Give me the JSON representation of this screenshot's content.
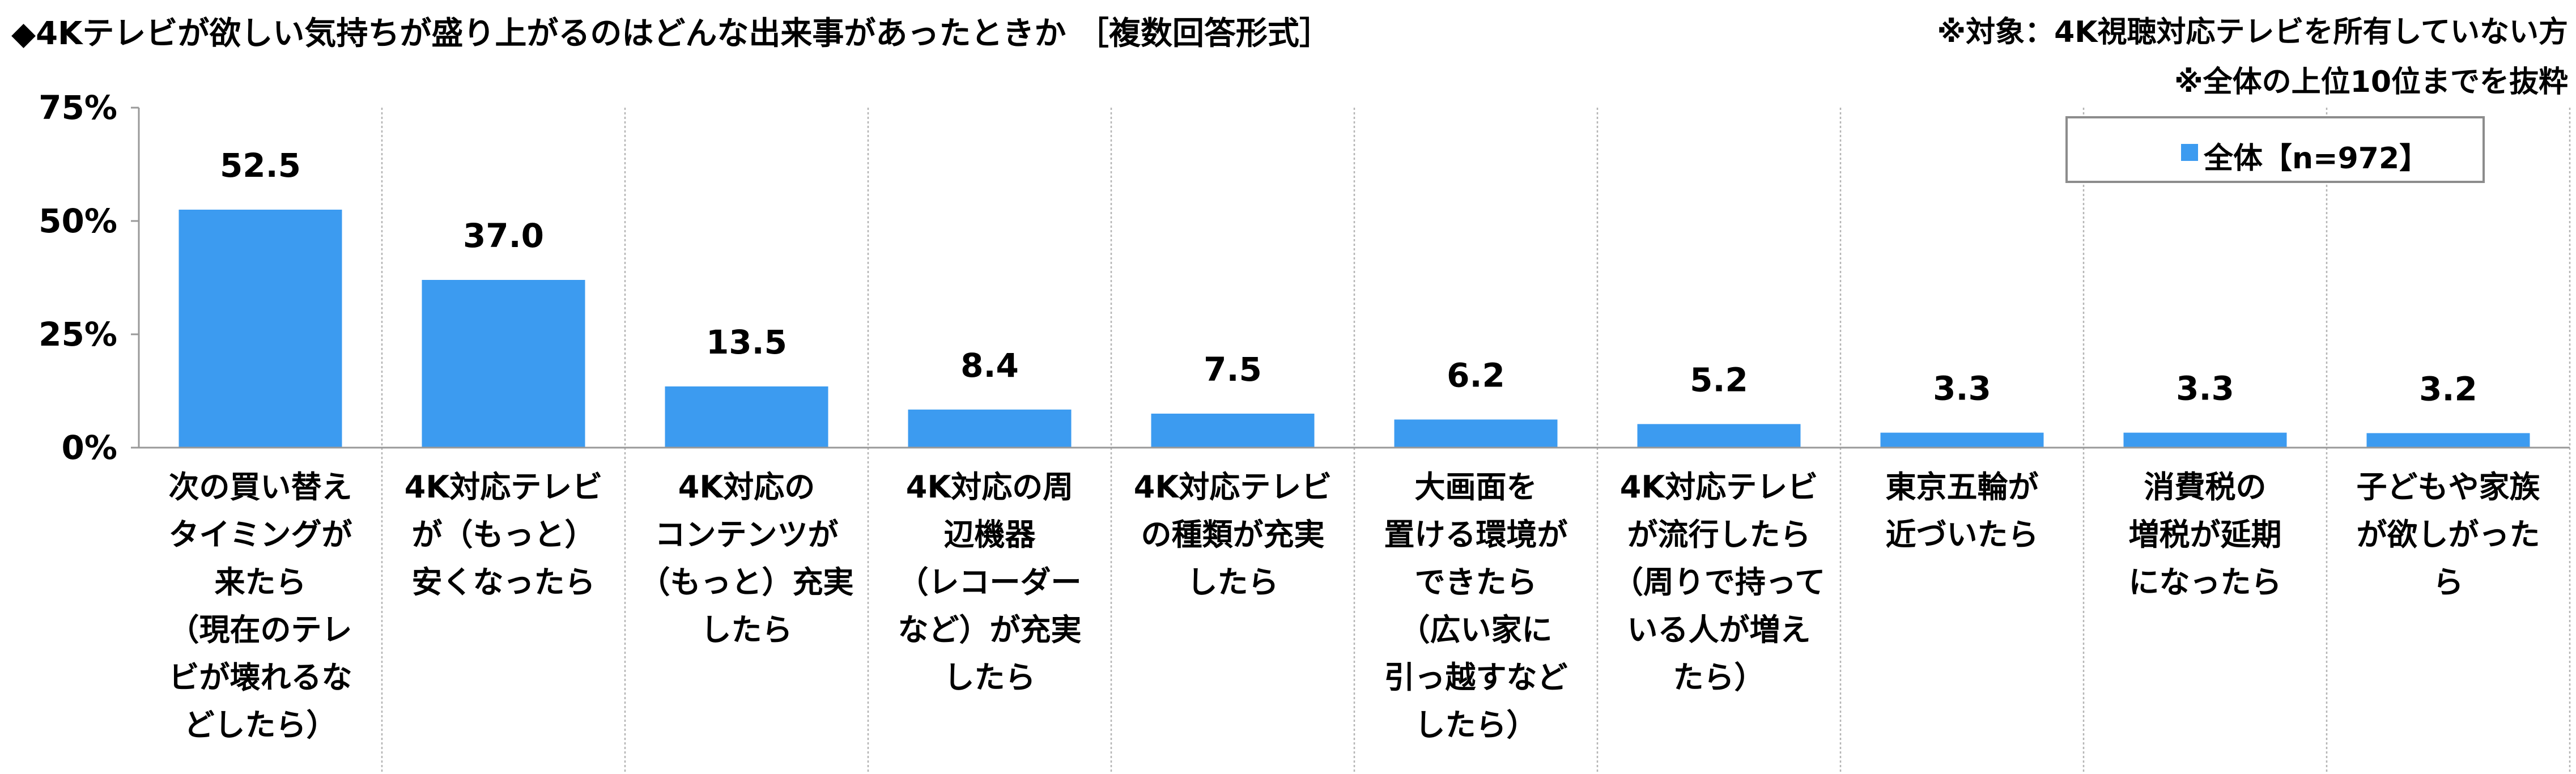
{
  "header": {
    "title": "◆4Kテレビが欲しい気持ちが盛り上がるのはどんな出来事があったときか ［複数回答形式］",
    "note1": "※対象：4K視聴対応テレビを所有していない方",
    "note2": "※全体の上位10位までを抜粋"
  },
  "legend": {
    "label": "全体【n=972】"
  },
  "colors": {
    "bar": "#3c9bf0",
    "axis": "#999999",
    "divider": "#b5b5b5"
  },
  "chart_data": {
    "type": "bar",
    "categories": [
      "次の買い替え\nタイミングが\n来たら\n（現在のテレ\nビが壊れるな\nどしたら）",
      "4K対応テレビ\nが（もっと）\n安くなったら",
      "4K対応の\nコンテンツが\n（もっと）充実\nしたら",
      "4K対応の周\n辺機器\n（レコーダー\nなど）が充実\nしたら",
      "4K対応テレビ\nの種類が充実\nしたら",
      "大画面を\n置ける環境が\nできたら\n（広い家に\n引っ越すなど\nしたら）",
      "4K対応テレビ\nが流行したら\n（周りで持って\nいる人が増え\nたら）",
      "東京五輪が\n近づいたら",
      "消費税の\n増税が延期\nになったら",
      "子どもや家族\nが欲しがった\nら"
    ],
    "series": [
      {
        "name": "全体【n=972】",
        "values": [
          52.5,
          37.0,
          13.5,
          8.4,
          7.5,
          6.2,
          5.2,
          3.3,
          3.3,
          3.2
        ]
      }
    ],
    "value_labels": [
      "52.5",
      "37.0",
      "13.5",
      "8.4",
      "7.5",
      "6.2",
      "5.2",
      "3.3",
      "3.3",
      "3.2"
    ],
    "yticks": [
      "0%",
      "25%",
      "50%",
      "75%"
    ],
    "ytick_values": [
      0,
      25,
      50,
      75
    ],
    "ylim": [
      0,
      75
    ],
    "grid": false,
    "legend_position": "top-right"
  }
}
